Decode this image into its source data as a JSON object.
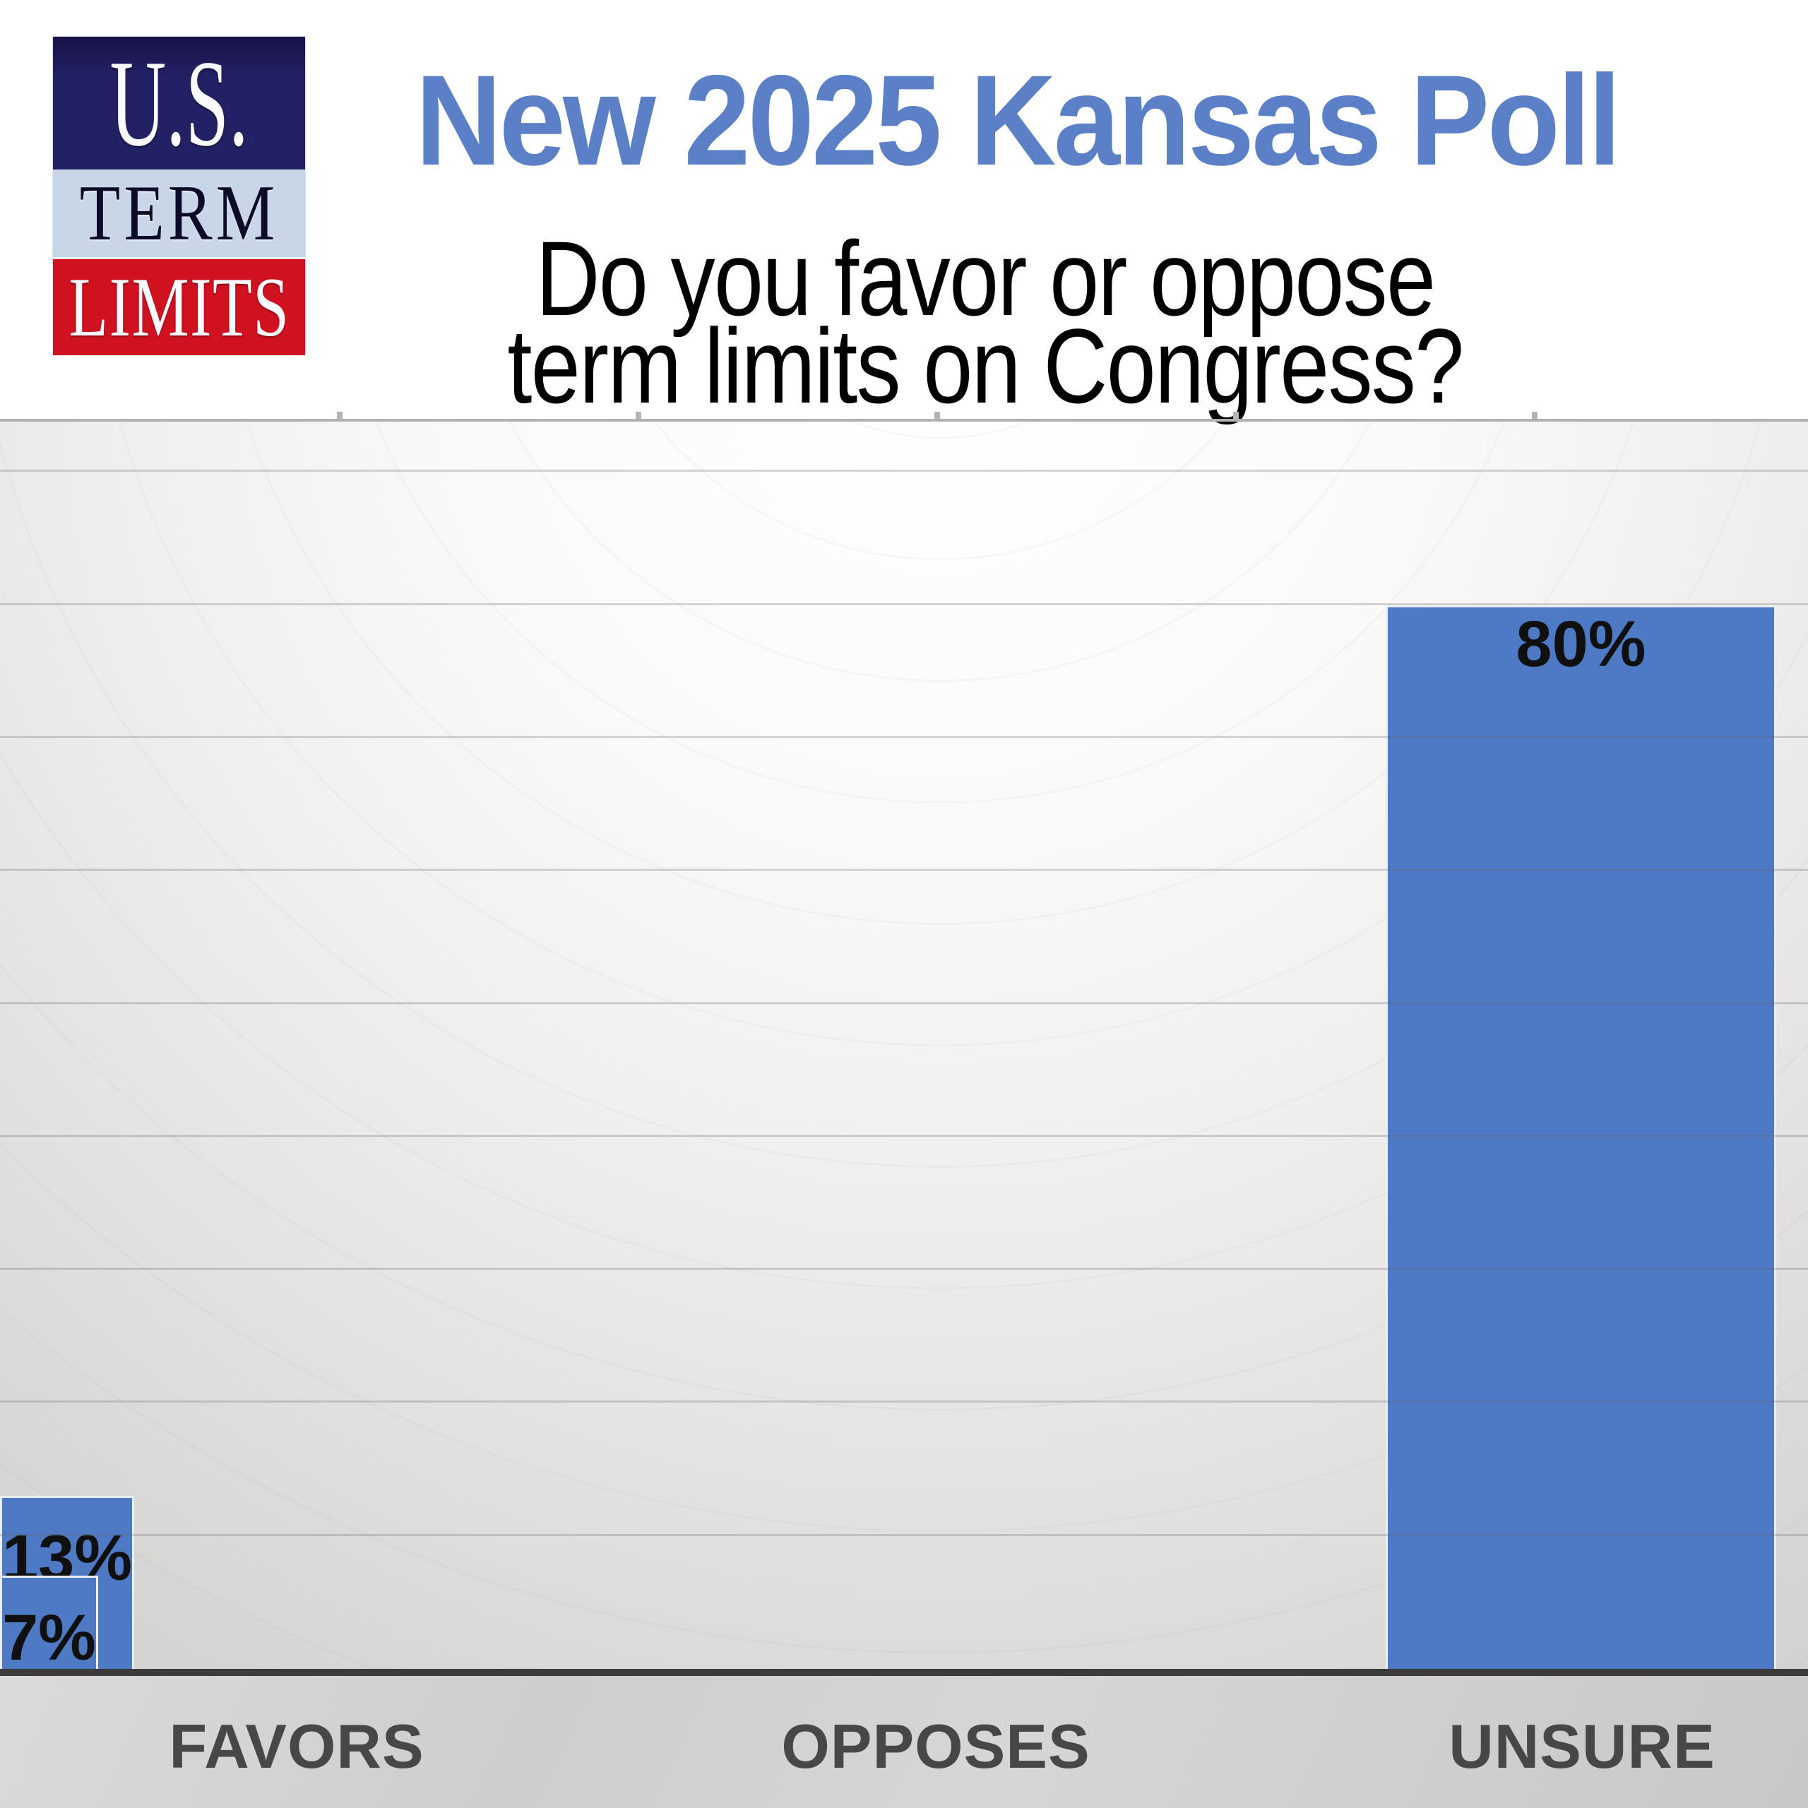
{
  "header": {
    "logo": {
      "top": "U.S.",
      "middle": "TERM",
      "bottom": "LIMITS"
    },
    "title": "New 2025 Kansas Poll",
    "question": {
      "line1": "Do you favor or oppose",
      "line2": "term limits on Congress?"
    }
  },
  "chart_data": {
    "type": "bar",
    "title": "New 2025 Kansas Poll",
    "subtitle": "Do you favor or oppose term limits on Congress?",
    "categories": [
      "FAVORS",
      "OPPOSES",
      "UNSURE"
    ],
    "values": [
      80,
      13,
      7
    ],
    "value_labels": [
      "80%",
      "13%",
      "7%"
    ],
    "xlabel": "",
    "ylabel": "",
    "ylim": [
      0,
      94
    ],
    "gridline_step": 10,
    "grid": true,
    "legend": false
  },
  "colors": {
    "title_blue": "#5b80c7",
    "bar_blue": "#4e79c5",
    "value_label": "#101010",
    "category_label": "#474745",
    "axis_gray": "#3c3b39",
    "logo_navy": "#232165",
    "logo_light_blue": "#c9d6e8",
    "logo_red": "#d01120",
    "logo_term_text": "#0c0c28",
    "logo_white_text": "#fafaff"
  }
}
